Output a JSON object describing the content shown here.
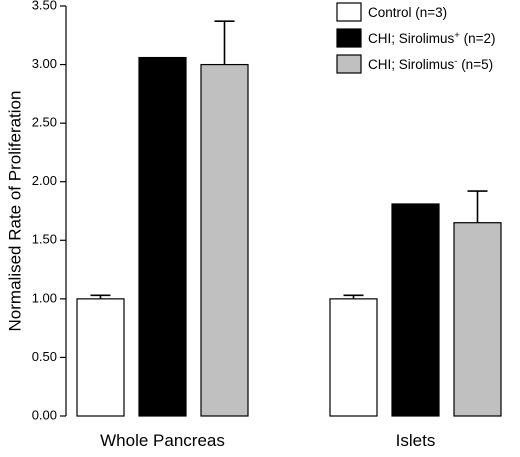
{
  "chart_data": {
    "type": "bar",
    "title": "",
    "xlabel": "",
    "ylabel": "Normalised Rate of Proliferation",
    "ylim": [
      0,
      3.5
    ],
    "yticks": [
      "0.00",
      "0.50",
      "1.00",
      "1.50",
      "2.00",
      "2.50",
      "3.00",
      "3.50"
    ],
    "categories": [
      "Whole Pancreas",
      "Islets"
    ],
    "series": [
      {
        "name": "Control (n=3)",
        "label_base": "Control (n=3)",
        "label_sup": "",
        "label_tail": "",
        "color": "#ffffff",
        "values": [
          1.0,
          1.0
        ],
        "errors": [
          0.03,
          0.03
        ]
      },
      {
        "name": "CHI; Sirolimus+ (n=2)",
        "label_base": "CHI; Sirolimus",
        "label_sup": "+",
        "label_tail": " (n=2)",
        "color": "#000000",
        "values": [
          3.06,
          1.81
        ],
        "errors": [
          0,
          0
        ]
      },
      {
        "name": "CHI; Sirolimus- (n=5)",
        "label_base": "CHI; Sirolimus",
        "label_sup": "-",
        "label_tail": " (n=5)",
        "color": "#c0c0c0",
        "values": [
          3.0,
          1.65
        ],
        "errors": [
          0.37,
          0.27
        ]
      }
    ],
    "legend_position": "top-right",
    "grid": false
  }
}
